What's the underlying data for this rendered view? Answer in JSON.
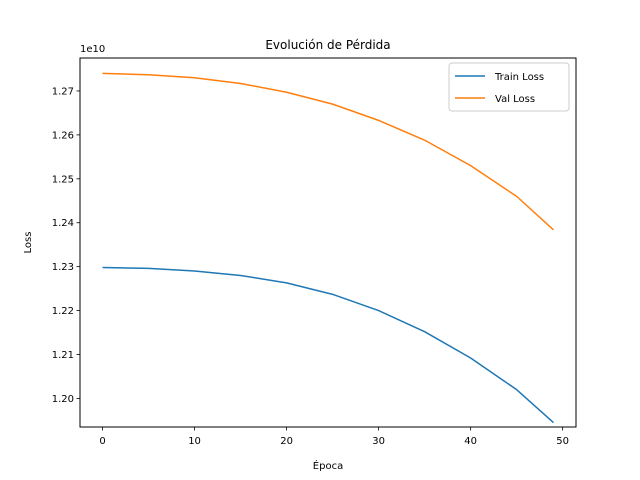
{
  "chart_data": {
    "type": "line",
    "title": "Evolución de Pérdida",
    "xlabel": "Época",
    "ylabel": "Loss",
    "offset_text": "1e10",
    "scale": 10000000000,
    "xlim": [
      -2.45,
      51.45
    ],
    "ylim": [
      1.1935,
      1.2775
    ],
    "xticks": [
      0,
      10,
      20,
      30,
      40,
      50
    ],
    "yticks": [
      1.2,
      1.21,
      1.22,
      1.23,
      1.24,
      1.25,
      1.26,
      1.27
    ],
    "ytick_labels": [
      "1.20",
      "1.21",
      "1.22",
      "1.23",
      "1.24",
      "1.25",
      "1.26",
      "1.27"
    ],
    "grid": false,
    "legend_position": "top-right",
    "series": [
      {
        "name": "Train Loss",
        "color": "#1f77b4",
        "x": [
          0,
          5,
          10,
          15,
          20,
          25,
          30,
          35,
          40,
          45,
          49
        ],
        "values": [
          1.2298,
          1.2296,
          1.229,
          1.228,
          1.2263,
          1.2237,
          1.22,
          1.2152,
          1.2092,
          1.202,
          1.1945
        ]
      },
      {
        "name": "Val Loss",
        "color": "#ff7f0e",
        "x": [
          0,
          5,
          10,
          15,
          20,
          25,
          30,
          35,
          40,
          45,
          49
        ],
        "values": [
          1.274,
          1.2737,
          1.273,
          1.2717,
          1.2697,
          1.267,
          1.2633,
          1.2588,
          1.253,
          1.246,
          1.2384
        ]
      }
    ]
  }
}
